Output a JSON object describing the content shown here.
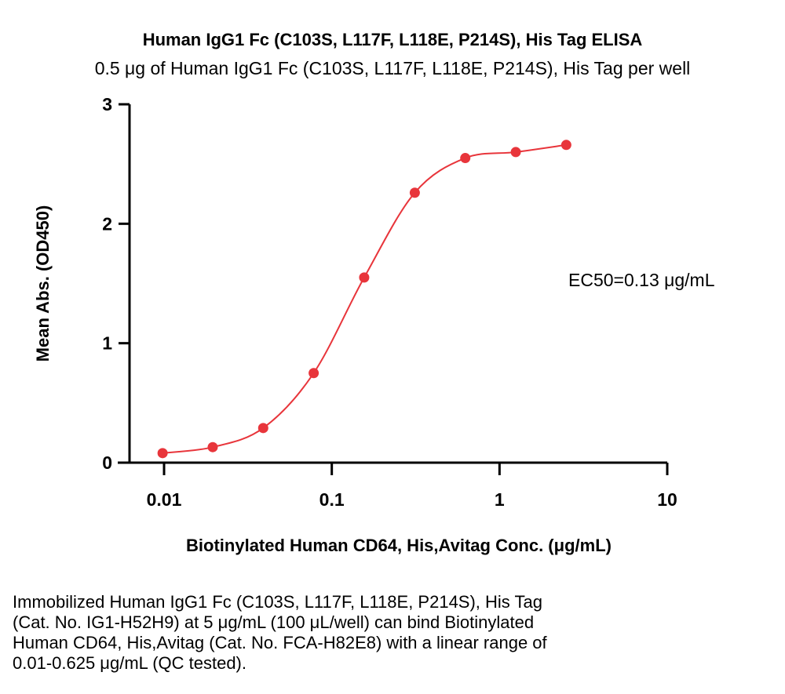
{
  "chart_data": {
    "type": "scatter",
    "title": "Human IgG1 Fc (C103S, L117F, L118E, P214S), His Tag ELISA",
    "subtitle": "0.5 μg of Human IgG1 Fc (C103S, L117F, L118E, P214S), His Tag per well",
    "xlabel": "Biotinylated Human CD64, His,Avitag Conc. (μg/mL)",
    "ylabel": "Mean Abs. (OD450)",
    "x_scale": "log",
    "xlim": [
      0.006,
      10
    ],
    "ylim": [
      0,
      3
    ],
    "x_ticks": [
      {
        "value": 0.01,
        "label": "0.01"
      },
      {
        "value": 0.1,
        "label": "0.1"
      },
      {
        "value": 1,
        "label": "1"
      },
      {
        "value": 10,
        "label": "10"
      }
    ],
    "y_ticks": [
      {
        "value": 0,
        "label": "0"
      },
      {
        "value": 1,
        "label": "1"
      },
      {
        "value": 2,
        "label": "2"
      },
      {
        "value": 3,
        "label": "3"
      }
    ],
    "series": [
      {
        "color": "#e8353b",
        "x": [
          0.0098,
          0.0195,
          0.039,
          0.078,
          0.156,
          0.3125,
          0.625,
          1.25,
          2.5
        ],
        "y": [
          0.08,
          0.13,
          0.29,
          0.75,
          1.55,
          2.26,
          2.55,
          2.6,
          2.66
        ]
      }
    ],
    "annotation": "EC50=0.13 μg/mL",
    "grid": false,
    "legend": "none"
  },
  "caption": "Immobilized Human IgG1 Fc (C103S, L117F, L118E, P214S), His Tag\n(Cat. No. IG1-H52H9) at 5 μg/mL (100 μL/well) can bind Biotinylated\nHuman CD64, His,Avitag (Cat. No. FCA-H82E8) with a linear range of\n0.01-0.625 μg/mL (QC tested)."
}
